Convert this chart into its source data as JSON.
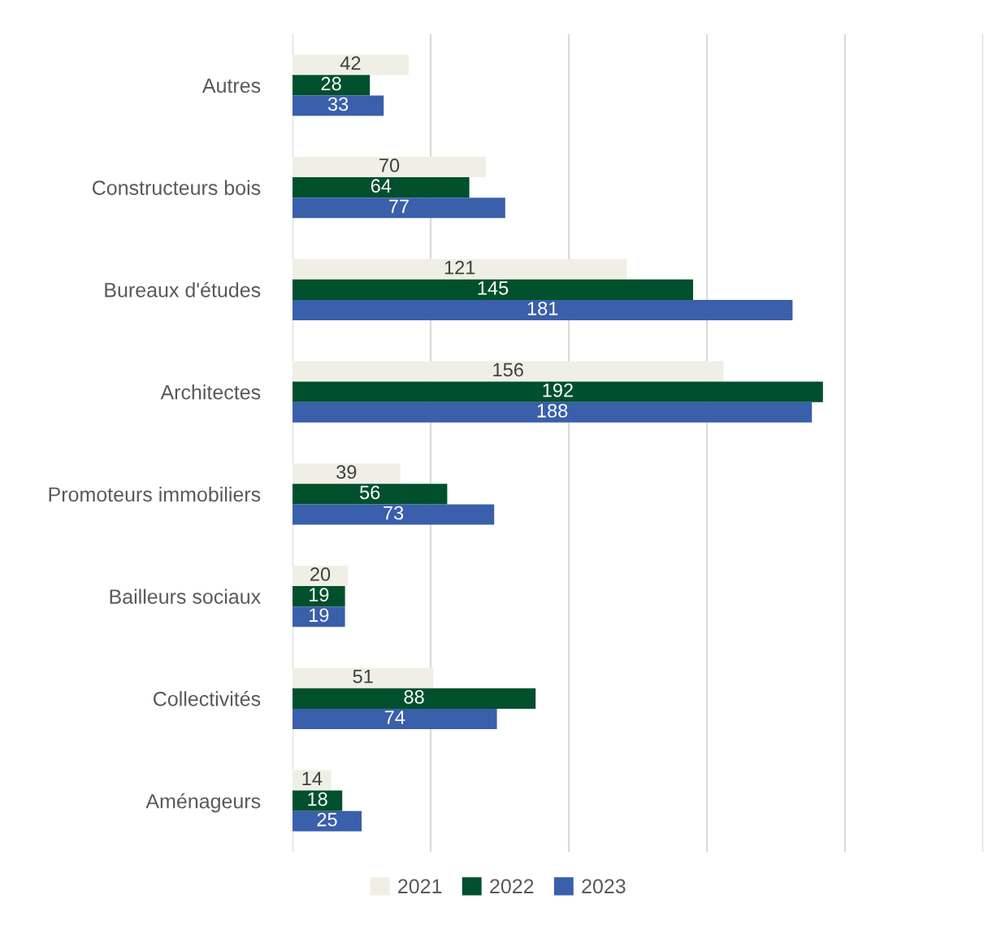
{
  "chart_data": {
    "type": "bar",
    "orientation": "horizontal",
    "categories": [
      "Autres",
      "Constructeurs bois",
      "Bureaux d'études",
      "Architectes",
      "Promoteurs immobiliers",
      "Bailleurs sociaux",
      "Collectivités",
      "Aménageurs"
    ],
    "series": [
      {
        "name": "2021",
        "color": "#efefe6",
        "values": [
          42,
          70,
          121,
          156,
          39,
          20,
          51,
          14
        ]
      },
      {
        "name": "2022",
        "color": "#00502d",
        "values": [
          28,
          64,
          145,
          192,
          56,
          19,
          88,
          18
        ]
      },
      {
        "name": "2023",
        "color": "#3a5fab",
        "values": [
          33,
          77,
          181,
          188,
          73,
          19,
          74,
          25
        ]
      }
    ],
    "xlim": [
      0,
      250
    ],
    "xticks": [
      {
        "value": 0,
        "label": null
      },
      {
        "value": 50,
        "label": null
      },
      {
        "value": 100,
        "label": null
      },
      {
        "value": 150,
        "label": null
      },
      {
        "value": 200,
        "label": null
      },
      {
        "value": 250,
        "label": null
      }
    ],
    "tick_labels": "y",
    "grid": "x",
    "legend": "bottom",
    "data_labels": true
  }
}
